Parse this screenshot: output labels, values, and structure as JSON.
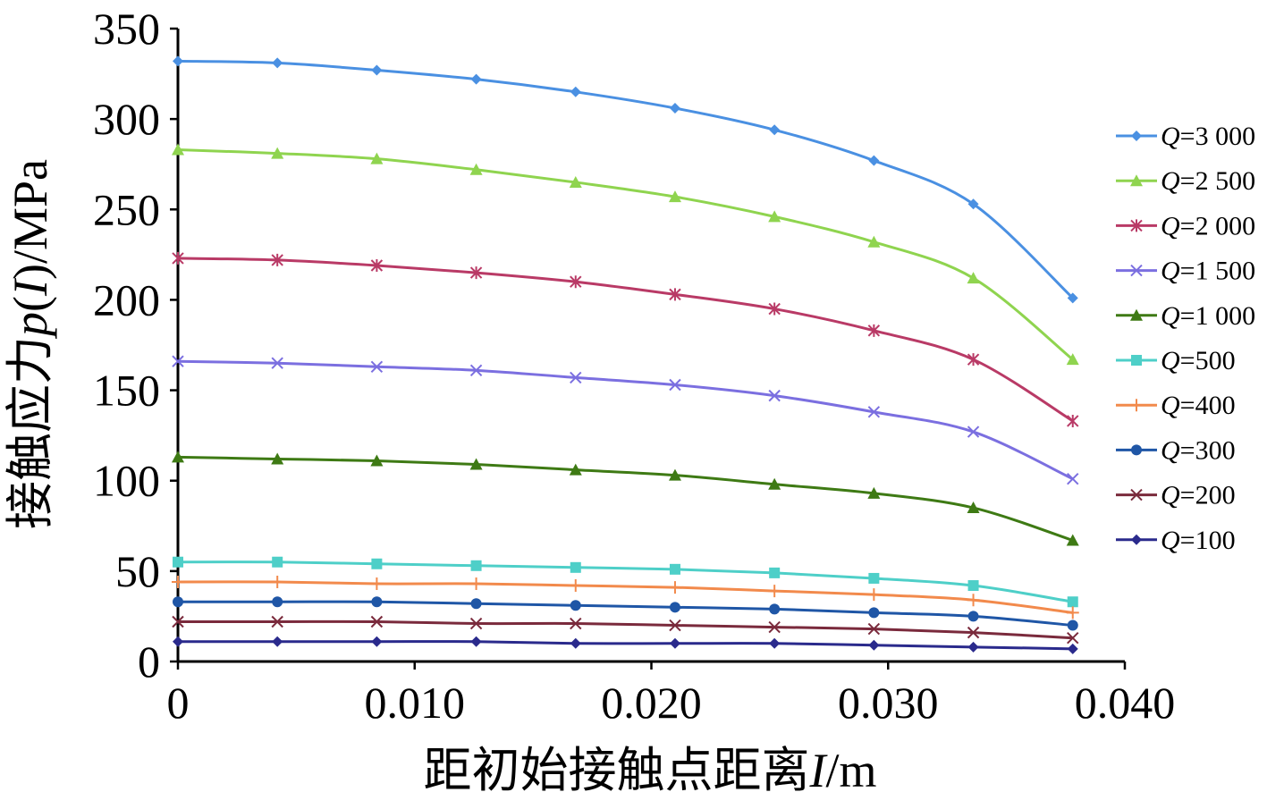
{
  "chart_data": {
    "type": "line",
    "xlabel_main": "距初始接触点距离",
    "xlabel_var": "I",
    "xlabel_unit": "/m",
    "ylabel_main": "接触应力",
    "ylabel_var": "p",
    "ylabel_arg": "I",
    "ylabel_unit": "/MPa",
    "xlim": [
      0,
      0.04
    ],
    "ylim": [
      0,
      350
    ],
    "x_ticks": [
      0,
      0.01,
      0.02,
      0.03,
      0.04
    ],
    "x_tick_labels": [
      "0",
      "0.010",
      "0.020",
      "0.030",
      "0.040"
    ],
    "y_ticks": [
      0,
      50,
      100,
      150,
      200,
      250,
      300,
      350
    ],
    "y_tick_labels": [
      "0",
      "50",
      "100",
      "150",
      "200",
      "250",
      "300",
      "350"
    ],
    "grid": false,
    "legend_position": "right",
    "x": [
      0,
      0.0042,
      0.0084,
      0.0126,
      0.0168,
      0.021,
      0.0252,
      0.0294,
      0.0336,
      0.0378
    ],
    "series": [
      {
        "name": "3 000",
        "legend_var": "Q",
        "color": "#4a90e2",
        "marker": "diamond",
        "values": [
          332,
          331,
          327,
          322,
          315,
          306,
          294,
          277,
          253,
          201
        ]
      },
      {
        "name": "2 500",
        "legend_var": "Q",
        "color": "#8fd44f",
        "marker": "triangle",
        "values": [
          283,
          281,
          278,
          272,
          265,
          257,
          246,
          232,
          212,
          167
        ]
      },
      {
        "name": "2 000",
        "legend_var": "Q",
        "color": "#b93a66",
        "marker": "star",
        "values": [
          223,
          222,
          219,
          215,
          210,
          203,
          195,
          183,
          167,
          133
        ]
      },
      {
        "name": "1 500",
        "legend_var": "Q",
        "color": "#7b6fe0",
        "marker": "x",
        "values": [
          166,
          165,
          163,
          161,
          157,
          153,
          147,
          138,
          127,
          101
        ]
      },
      {
        "name": "1 000",
        "legend_var": "Q",
        "color": "#3e7a14",
        "marker": "triangle",
        "values": [
          113,
          112,
          111,
          109,
          106,
          103,
          98,
          93,
          85,
          67
        ]
      },
      {
        "name": "500",
        "legend_var": "Q",
        "color": "#4ecfc8",
        "marker": "square",
        "values": [
          55,
          55,
          54,
          53,
          52,
          51,
          49,
          46,
          42,
          33
        ]
      },
      {
        "name": "400",
        "legend_var": "Q",
        "color": "#f28a4c",
        "marker": "plus",
        "values": [
          44,
          44,
          43,
          43,
          42,
          41,
          39,
          37,
          34,
          27
        ]
      },
      {
        "name": "300",
        "legend_var": "Q",
        "color": "#1f56a6",
        "marker": "circle",
        "values": [
          33,
          33,
          33,
          32,
          31,
          30,
          29,
          27,
          25,
          20
        ]
      },
      {
        "name": "200",
        "legend_var": "Q",
        "color": "#7a2a3c",
        "marker": "x",
        "values": [
          22,
          22,
          22,
          21,
          21,
          20,
          19,
          18,
          16,
          13
        ]
      },
      {
        "name": "100",
        "legend_var": "Q",
        "color": "#2a2a8c",
        "marker": "diamond",
        "values": [
          11,
          11,
          11,
          11,
          10,
          10,
          10,
          9,
          8,
          7
        ]
      }
    ]
  }
}
